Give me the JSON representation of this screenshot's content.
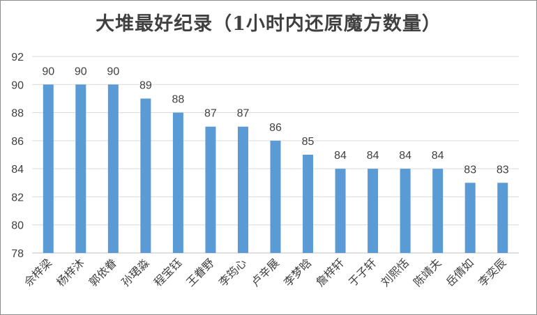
{
  "chart_data": {
    "type": "bar",
    "title": "大堆最好纪录（1小时内还原魔方数量）",
    "categories": [
      "佘梓梁",
      "杨梓沐",
      "郭依眷",
      "孙珺淼",
      "程宝钰",
      "王眷野",
      "李筠心",
      "卢辛展",
      "李梦晗",
      "詹梓轩",
      "于子轩",
      "刘熙恬",
      "陈靖夫",
      "岳倩如",
      "李奕辰"
    ],
    "values": [
      90,
      90,
      90,
      89,
      88,
      87,
      87,
      86,
      85,
      84,
      84,
      84,
      84,
      83,
      83
    ],
    "yticks": [
      "78",
      "80",
      "82",
      "84",
      "86",
      "88",
      "90",
      "92"
    ],
    "ylim": [
      78,
      92
    ],
    "xlabel": "",
    "ylabel": "",
    "grid": true,
    "legend": "none",
    "bar_color": "#5b9bd5",
    "grid_color": "#d9d9d9"
  }
}
